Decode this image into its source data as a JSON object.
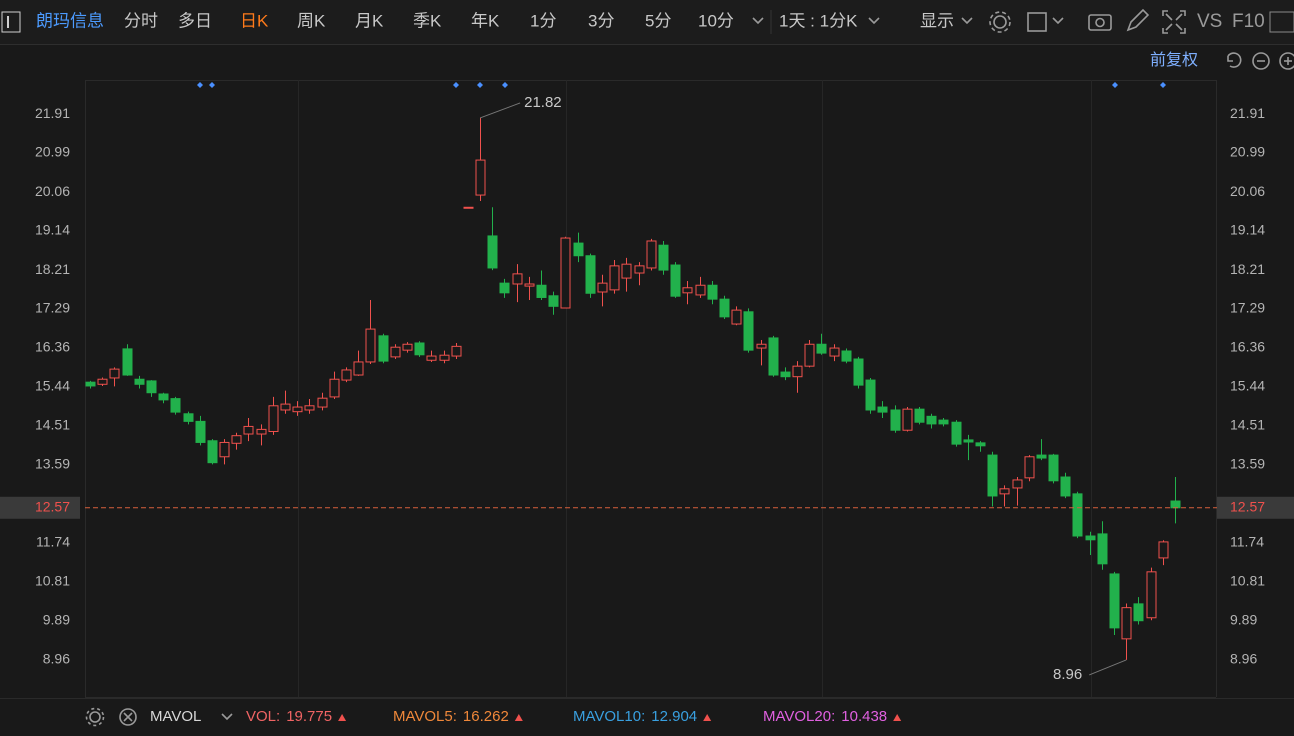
{
  "toolbar": {
    "stock": "朗玛信息",
    "periods": [
      "分时",
      "多日",
      "日K",
      "周K",
      "月K",
      "季K",
      "年K",
      "1分",
      "3分",
      "5分",
      "10分"
    ],
    "range": "1天 : 1分K",
    "display": "显示",
    "vs": "VS",
    "f10": "F10"
  },
  "adjust": "前复权",
  "chart_data": {
    "type": "candlestick",
    "up_color": "#f0514d",
    "down_color": "#22b14c",
    "grid": false,
    "ylim": [
      8.08,
      22.72
    ],
    "yticks": [
      21.91,
      20.99,
      20.06,
      19.14,
      18.21,
      17.29,
      16.36,
      15.44,
      14.51,
      13.59,
      11.74,
      10.81,
      9.89,
      8.96
    ],
    "open": [
      15.55,
      15.5,
      15.65,
      16.34,
      15.62,
      15.58,
      15.27,
      15.16,
      14.8,
      14.62,
      14.16,
      13.78,
      14.1,
      14.32,
      14.32,
      14.38,
      14.89,
      14.85,
      14.89,
      14.96,
      15.2,
      15.6,
      15.72,
      16.03,
      16.65,
      16.15,
      16.31,
      16.48,
      16.07,
      16.07,
      16.17,
      19.7,
      19.99,
      19.02,
      17.9,
      17.88,
      17.83,
      17.85,
      17.6,
      17.31,
      18.85,
      18.55,
      17.69,
      17.74,
      18.02,
      18.14,
      18.26,
      18.8,
      18.33,
      17.67,
      17.62,
      17.85,
      17.52,
      16.93,
      17.22,
      16.36,
      16.6,
      15.79,
      15.68,
      15.93,
      16.45,
      16.17,
      16.29,
      16.1,
      15.6,
      14.96,
      14.89,
      14.41,
      14.91,
      14.74,
      14.65,
      14.6,
      14.18,
      14.11,
      13.82,
      12.9,
      13.04,
      13.28,
      13.82,
      13.82,
      13.3,
      12.9,
      11.9,
      11.95,
      11.0,
      9.46,
      10.29,
      9.96,
      11.38,
      12.73
    ],
    "high": [
      15.58,
      15.66,
      15.9,
      16.45,
      15.7,
      15.6,
      15.3,
      15.2,
      14.85,
      14.75,
      14.2,
      14.2,
      14.35,
      14.7,
      14.55,
      15.2,
      15.35,
      15.1,
      15.15,
      15.3,
      15.8,
      15.9,
      16.3,
      17.5,
      16.7,
      16.45,
      16.5,
      16.52,
      16.3,
      16.3,
      16.48,
      19.7,
      21.82,
      19.7,
      18.0,
      18.35,
      18.05,
      18.2,
      17.7,
      19.0,
      19.1,
      18.6,
      18.1,
      18.45,
      18.5,
      18.4,
      18.95,
      18.9,
      18.4,
      17.95,
      18.05,
      17.95,
      17.6,
      17.35,
      17.3,
      16.55,
      16.65,
      15.9,
      16.05,
      16.55,
      16.7,
      16.45,
      16.35,
      16.15,
      15.65,
      15.1,
      15.0,
      14.96,
      14.96,
      14.8,
      14.7,
      14.65,
      14.3,
      14.15,
      13.9,
      13.1,
      13.3,
      13.82,
      14.2,
      13.85,
      13.4,
      12.95,
      12.0,
      12.25,
      11.05,
      10.3,
      10.45,
      11.15,
      11.8,
      13.3
    ],
    "low": [
      15.4,
      15.46,
      15.45,
      15.7,
      15.4,
      15.2,
      15.05,
      14.78,
      14.55,
      14.05,
      13.6,
      13.6,
      13.95,
      14.15,
      14.05,
      14.3,
      14.8,
      14.75,
      14.8,
      14.88,
      15.15,
      15.55,
      15.7,
      15.98,
      16.0,
      16.1,
      16.25,
      16.15,
      16.03,
      16.0,
      16.1,
      19.7,
      19.85,
      18.21,
      17.55,
      17.45,
      17.5,
      17.5,
      17.15,
      17.31,
      18.4,
      17.55,
      17.35,
      17.65,
      17.7,
      17.85,
      18.2,
      18.1,
      17.55,
      17.4,
      17.55,
      17.4,
      17.05,
      16.9,
      16.25,
      15.95,
      15.68,
      15.6,
      15.3,
      15.9,
      16.2,
      16.05,
      16.0,
      15.4,
      14.8,
      14.7,
      14.35,
      14.38,
      14.55,
      14.45,
      14.5,
      14.02,
      13.7,
      13.9,
      12.6,
      12.6,
      12.62,
      13.2,
      13.7,
      13.15,
      12.8,
      11.85,
      11.45,
      11.1,
      9.55,
      8.96,
      9.8,
      9.9,
      11.21,
      12.2
    ],
    "close": [
      15.46,
      15.62,
      15.86,
      15.72,
      15.5,
      15.3,
      15.13,
      14.84,
      14.62,
      14.12,
      13.64,
      14.12,
      14.28,
      14.5,
      14.43,
      14.99,
      15.03,
      14.96,
      14.99,
      15.17,
      15.62,
      15.84,
      16.03,
      16.81,
      16.05,
      16.38,
      16.45,
      16.2,
      16.17,
      16.19,
      16.4,
      19.7,
      20.82,
      18.26,
      17.67,
      18.12,
      17.88,
      17.56,
      17.35,
      18.97,
      18.55,
      17.66,
      17.9,
      18.31,
      18.35,
      18.31,
      18.9,
      18.21,
      17.59,
      17.79,
      17.85,
      17.52,
      17.1,
      17.26,
      16.31,
      16.45,
      15.72,
      15.68,
      15.93,
      16.45,
      16.24,
      16.36,
      16.05,
      15.48,
      14.89,
      14.84,
      14.41,
      14.91,
      14.6,
      14.56,
      14.56,
      14.08,
      14.13,
      14.04,
      12.85,
      13.02,
      13.23,
      13.78,
      13.75,
      13.21,
      12.85,
      11.9,
      11.81,
      11.24,
      9.72,
      10.2,
      9.89,
      11.05,
      11.76,
      12.57
    ]
  },
  "indicator_bar": {
    "name": "MAVOL",
    "items": [
      {
        "label": "VOL:",
        "value": 19.775,
        "color": "#f06464"
      },
      {
        "label": "MAVOL5:",
        "value": 16.262,
        "color": "#f0883a"
      },
      {
        "label": "MAVOL10:",
        "value": 12.904,
        "color": "#39a0e0"
      },
      {
        "label": "MAVOL20:",
        "value": 10.438,
        "color": "#e060e0"
      }
    ]
  }
}
